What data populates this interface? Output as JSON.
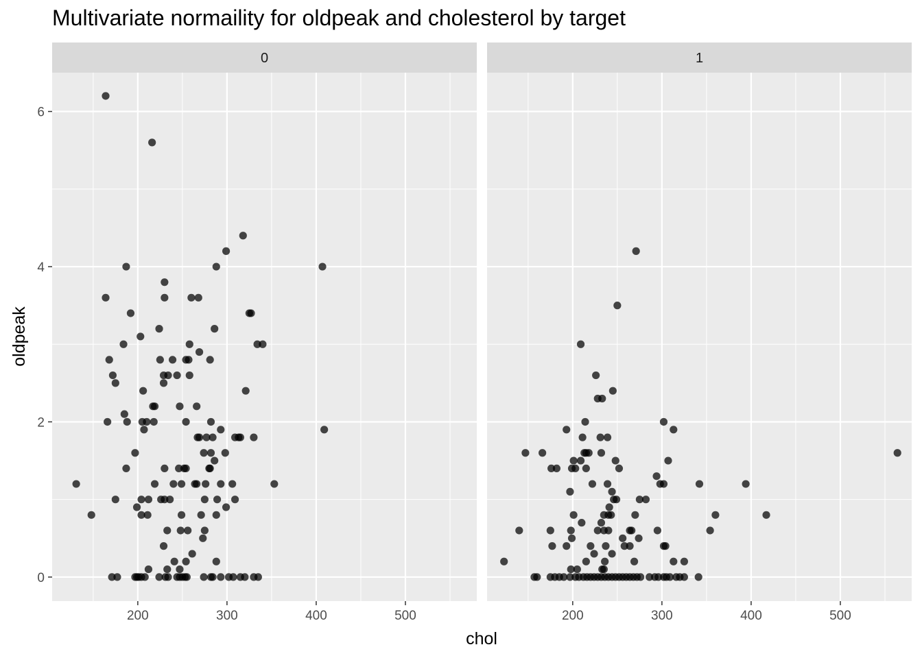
{
  "chart_data": {
    "type": "scatter",
    "title": "Multivariate normaility for oldpeak and cholesterol by target",
    "xlabel": "chol",
    "ylabel": "oldpeak",
    "xlim": [
      104,
      580
    ],
    "ylim": [
      -0.31,
      6.5
    ],
    "x_ticks": [
      200,
      300,
      400,
      500
    ],
    "x_tick_labels": [
      "200",
      "300",
      "400",
      "500"
    ],
    "y_ticks": [
      0,
      2,
      4,
      6
    ],
    "y_tick_labels": [
      "0",
      "2",
      "4",
      "6"
    ],
    "grid": true,
    "facet_by": "target",
    "panels": [
      {
        "label": "0",
        "points": [
          [
            164,
            6.2
          ],
          [
            216,
            5.6
          ],
          [
            318,
            4.4
          ],
          [
            299,
            4.2
          ],
          [
            187,
            4.0
          ],
          [
            288,
            4.0
          ],
          [
            407,
            4.0
          ],
          [
            230,
            3.8
          ],
          [
            164,
            3.6
          ],
          [
            230,
            3.6
          ],
          [
            260,
            3.6
          ],
          [
            268,
            3.6
          ],
          [
            325,
            3.4
          ],
          [
            327,
            3.4
          ],
          [
            192,
            3.4
          ],
          [
            224,
            3.2
          ],
          [
            286,
            3.2
          ],
          [
            203,
            3.1
          ],
          [
            184,
            3.0
          ],
          [
            258,
            3.0
          ],
          [
            334,
            3.0
          ],
          [
            340,
            3.0
          ],
          [
            269,
            2.9
          ],
          [
            168,
            2.8
          ],
          [
            225,
            2.8
          ],
          [
            239,
            2.8
          ],
          [
            254,
            2.8
          ],
          [
            257,
            2.8
          ],
          [
            281,
            2.8
          ],
          [
            172,
            2.6
          ],
          [
            229,
            2.6
          ],
          [
            234,
            2.6
          ],
          [
            244,
            2.6
          ],
          [
            258,
            2.6
          ],
          [
            175,
            2.5
          ],
          [
            229,
            2.5
          ],
          [
            206,
            2.4
          ],
          [
            321,
            2.4
          ],
          [
            217,
            2.2
          ],
          [
            219,
            2.2
          ],
          [
            247,
            2.2
          ],
          [
            266,
            2.2
          ],
          [
            185,
            2.1
          ],
          [
            166,
            2.0
          ],
          [
            188,
            2.0
          ],
          [
            205,
            2.0
          ],
          [
            210,
            2.0
          ],
          [
            218,
            2.0
          ],
          [
            254,
            2.0
          ],
          [
            282,
            2.0
          ],
          [
            207,
            1.9
          ],
          [
            293,
            1.9
          ],
          [
            409,
            1.9
          ],
          [
            269,
            1.8
          ],
          [
            267,
            1.8
          ],
          [
            277,
            1.8
          ],
          [
            284,
            1.8
          ],
          [
            309,
            1.8
          ],
          [
            313,
            1.8
          ],
          [
            315,
            1.8
          ],
          [
            330,
            1.8
          ],
          [
            197,
            1.6
          ],
          [
            274,
            1.6
          ],
          [
            282,
            1.6
          ],
          [
            298,
            1.6
          ],
          [
            286,
            1.5
          ],
          [
            187,
            1.4
          ],
          [
            230,
            1.4
          ],
          [
            246,
            1.4
          ],
          [
            252,
            1.4
          ],
          [
            254,
            1.4
          ],
          [
            280,
            1.4
          ],
          [
            281,
            1.4
          ],
          [
            131,
            1.2
          ],
          [
            219,
            1.2
          ],
          [
            240,
            1.2
          ],
          [
            249,
            1.2
          ],
          [
            264,
            1.2
          ],
          [
            266,
            1.2
          ],
          [
            276,
            1.2
          ],
          [
            293,
            1.2
          ],
          [
            306,
            1.2
          ],
          [
            353,
            1.2
          ],
          [
            175,
            1.0
          ],
          [
            204,
            1.0
          ],
          [
            212,
            1.0
          ],
          [
            226,
            1.0
          ],
          [
            230,
            1.0
          ],
          [
            236,
            1.0
          ],
          [
            275,
            1.0
          ],
          [
            289,
            1.0
          ],
          [
            309,
            1.0
          ],
          [
            199,
            0.9
          ],
          [
            299,
            0.9
          ],
          [
            148,
            0.8
          ],
          [
            204,
            0.8
          ],
          [
            211,
            0.8
          ],
          [
            249,
            0.8
          ],
          [
            271,
            0.8
          ],
          [
            288,
            0.8
          ],
          [
            233,
            0.6
          ],
          [
            248,
            0.6
          ],
          [
            256,
            0.6
          ],
          [
            275,
            0.6
          ],
          [
            273,
            0.5
          ],
          [
            229,
            0.4
          ],
          [
            241,
            0.2
          ],
          [
            254,
            0.2
          ],
          [
            288,
            0.2
          ],
          [
            212,
            0.1
          ],
          [
            233,
            0.1
          ],
          [
            247,
            0.1
          ],
          [
            261,
            0.3
          ],
          [
            171,
            0.0
          ],
          [
            177,
            0.0
          ],
          [
            197,
            0.0
          ],
          [
            199,
            0.0
          ],
          [
            201,
            0.0
          ],
          [
            204,
            0.0
          ],
          [
            208,
            0.0
          ],
          [
            224,
            0.0
          ],
          [
            231,
            0.0
          ],
          [
            234,
            0.0
          ],
          [
            244,
            0.0
          ],
          [
            247,
            0.0
          ],
          [
            250,
            0.0
          ],
          [
            253,
            0.0
          ],
          [
            255,
            0.0
          ],
          [
            274,
            0.0
          ],
          [
            282,
            0.0
          ],
          [
            284,
            0.0
          ],
          [
            293,
            0.0
          ],
          [
            302,
            0.0
          ],
          [
            307,
            0.0
          ],
          [
            315,
            0.0
          ],
          [
            320,
            0.0
          ],
          [
            330,
            0.0
          ],
          [
            335,
            0.0
          ]
        ]
      },
      {
        "label": "1",
        "points": [
          [
            564,
            1.6
          ],
          [
            271,
            4.2
          ],
          [
            250,
            3.5
          ],
          [
            209,
            3.0
          ],
          [
            226,
            2.6
          ],
          [
            245,
            2.4
          ],
          [
            228,
            2.3
          ],
          [
            233,
            2.3
          ],
          [
            214,
            2.0
          ],
          [
            302,
            2.0
          ],
          [
            313,
            1.9
          ],
          [
            193,
            1.9
          ],
          [
            211,
            1.8
          ],
          [
            231,
            1.8
          ],
          [
            239,
            1.8
          ],
          [
            147,
            1.6
          ],
          [
            166,
            1.6
          ],
          [
            213,
            1.6
          ],
          [
            215,
            1.6
          ],
          [
            218,
            1.6
          ],
          [
            232,
            1.6
          ],
          [
            201,
            1.5
          ],
          [
            209,
            1.5
          ],
          [
            248,
            1.5
          ],
          [
            307,
            1.5
          ],
          [
            176,
            1.4
          ],
          [
            182,
            1.4
          ],
          [
            199,
            1.4
          ],
          [
            203,
            1.4
          ],
          [
            215,
            1.4
          ],
          [
            252,
            1.4
          ],
          [
            294,
            1.3
          ],
          [
            222,
            1.2
          ],
          [
            239,
            1.2
          ],
          [
            298,
            1.2
          ],
          [
            302,
            1.2
          ],
          [
            342,
            1.2
          ],
          [
            394,
            1.2
          ],
          [
            244,
            1.1
          ],
          [
            197,
            1.1
          ],
          [
            246,
            1.0
          ],
          [
            249,
            1.0
          ],
          [
            275,
            1.0
          ],
          [
            282,
            1.0
          ],
          [
            241,
            0.9
          ],
          [
            201,
            0.8
          ],
          [
            235,
            0.8
          ],
          [
            240,
            0.8
          ],
          [
            243,
            0.8
          ],
          [
            270,
            0.8
          ],
          [
            360,
            0.8
          ],
          [
            417,
            0.8
          ],
          [
            210,
            0.7
          ],
          [
            232,
            0.7
          ],
          [
            140,
            0.6
          ],
          [
            175,
            0.6
          ],
          [
            198,
            0.6
          ],
          [
            228,
            0.6
          ],
          [
            235,
            0.6
          ],
          [
            240,
            0.6
          ],
          [
            264,
            0.6
          ],
          [
            266,
            0.6
          ],
          [
            295,
            0.6
          ],
          [
            354,
            0.6
          ],
          [
            199,
            0.5
          ],
          [
            256,
            0.5
          ],
          [
            274,
            0.5
          ],
          [
            177,
            0.4
          ],
          [
            193,
            0.4
          ],
          [
            220,
            0.4
          ],
          [
            237,
            0.4
          ],
          [
            258,
            0.4
          ],
          [
            264,
            0.4
          ],
          [
            302,
            0.4
          ],
          [
            304,
            0.4
          ],
          [
            224,
            0.3
          ],
          [
            244,
            0.3
          ],
          [
            233,
            0.1
          ],
          [
            235,
            0.1
          ],
          [
            198,
            0.1
          ],
          [
            205,
            0.1
          ],
          [
            123,
            0.2
          ],
          [
            215,
            0.2
          ],
          [
            236,
            0.2
          ],
          [
            269,
            0.2
          ],
          [
            313,
            0.2
          ],
          [
            325,
            0.2
          ],
          [
            157,
            0.0
          ],
          [
            160,
            0.0
          ],
          [
            175,
            0.0
          ],
          [
            180,
            0.0
          ],
          [
            185,
            0.0
          ],
          [
            190,
            0.0
          ],
          [
            197,
            0.0
          ],
          [
            203,
            0.0
          ],
          [
            207,
            0.0
          ],
          [
            212,
            0.0
          ],
          [
            216,
            0.0
          ],
          [
            220,
            0.0
          ],
          [
            224,
            0.0
          ],
          [
            228,
            0.0
          ],
          [
            232,
            0.0
          ],
          [
            236,
            0.0
          ],
          [
            240,
            0.0
          ],
          [
            244,
            0.0
          ],
          [
            248,
            0.0
          ],
          [
            252,
            0.0
          ],
          [
            256,
            0.0
          ],
          [
            260,
            0.0
          ],
          [
            264,
            0.0
          ],
          [
            268,
            0.0
          ],
          [
            272,
            0.0
          ],
          [
            276,
            0.0
          ],
          [
            286,
            0.0
          ],
          [
            292,
            0.0
          ],
          [
            296,
            0.0
          ],
          [
            302,
            0.0
          ],
          [
            305,
            0.0
          ],
          [
            309,
            0.0
          ],
          [
            316,
            0.0
          ],
          [
            320,
            0.0
          ],
          [
            325,
            0.0
          ],
          [
            341,
            0.0
          ]
        ]
      }
    ]
  }
}
